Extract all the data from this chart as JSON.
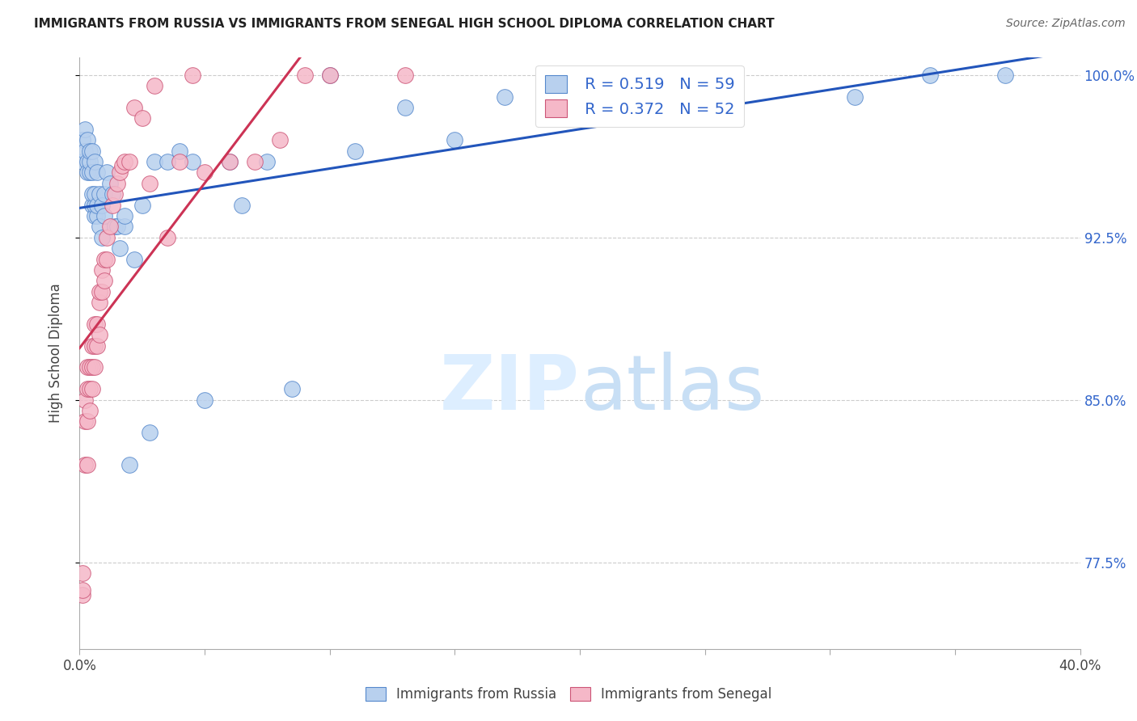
{
  "title": "IMMIGRANTS FROM RUSSIA VS IMMIGRANTS FROM SENEGAL HIGH SCHOOL DIPLOMA CORRELATION CHART",
  "source": "Source: ZipAtlas.com",
  "ylabel": "High School Diploma",
  "xlim": [
    0.0,
    0.4
  ],
  "ylim": [
    0.735,
    1.008
  ],
  "ytick_positions": [
    0.775,
    0.85,
    0.925,
    1.0
  ],
  "ytick_labels": [
    "77.5%",
    "85.0%",
    "92.5%",
    "100.0%"
  ],
  "russia_color": "#b8d0ee",
  "senegal_color": "#f5b8c8",
  "russia_edge_color": "#5588cc",
  "senegal_edge_color": "#cc5577",
  "russia_line_color": "#2255bb",
  "senegal_line_color": "#cc3355",
  "watermark_color": "#ddeeff",
  "legend_russia_R": "R = 0.519",
  "legend_russia_N": "N = 59",
  "legend_senegal_R": "R = 0.372",
  "legend_senegal_N": "N = 52",
  "russia_x": [
    0.001,
    0.001,
    0.002,
    0.002,
    0.003,
    0.003,
    0.003,
    0.004,
    0.004,
    0.004,
    0.005,
    0.005,
    0.005,
    0.005,
    0.006,
    0.006,
    0.006,
    0.006,
    0.007,
    0.007,
    0.007,
    0.008,
    0.008,
    0.009,
    0.009,
    0.01,
    0.01,
    0.011,
    0.012,
    0.013,
    0.014,
    0.015,
    0.016,
    0.018,
    0.018,
    0.02,
    0.022,
    0.025,
    0.028,
    0.03,
    0.035,
    0.04,
    0.045,
    0.05,
    0.06,
    0.065,
    0.075,
    0.085,
    0.1,
    0.11,
    0.13,
    0.15,
    0.17,
    0.2,
    0.22,
    0.26,
    0.31,
    0.34,
    0.37
  ],
  "russia_y": [
    0.96,
    0.97,
    0.965,
    0.975,
    0.96,
    0.955,
    0.97,
    0.955,
    0.96,
    0.965,
    0.94,
    0.945,
    0.955,
    0.965,
    0.935,
    0.94,
    0.945,
    0.96,
    0.935,
    0.94,
    0.955,
    0.93,
    0.945,
    0.925,
    0.94,
    0.935,
    0.945,
    0.955,
    0.95,
    0.945,
    0.93,
    0.93,
    0.92,
    0.93,
    0.935,
    0.82,
    0.915,
    0.94,
    0.835,
    0.96,
    0.96,
    0.965,
    0.96,
    0.85,
    0.96,
    0.94,
    0.96,
    0.855,
    1.0,
    0.965,
    0.985,
    0.97,
    0.99,
    0.98,
    0.995,
    1.0,
    0.99,
    1.0,
    1.0
  ],
  "senegal_x": [
    0.001,
    0.001,
    0.001,
    0.002,
    0.002,
    0.002,
    0.003,
    0.003,
    0.003,
    0.003,
    0.004,
    0.004,
    0.004,
    0.005,
    0.005,
    0.005,
    0.006,
    0.006,
    0.006,
    0.007,
    0.007,
    0.008,
    0.008,
    0.008,
    0.009,
    0.009,
    0.01,
    0.01,
    0.011,
    0.011,
    0.012,
    0.013,
    0.014,
    0.015,
    0.016,
    0.017,
    0.018,
    0.02,
    0.022,
    0.025,
    0.028,
    0.03,
    0.035,
    0.04,
    0.045,
    0.05,
    0.06,
    0.07,
    0.08,
    0.09,
    0.1,
    0.13
  ],
  "senegal_y": [
    0.76,
    0.762,
    0.77,
    0.82,
    0.84,
    0.85,
    0.82,
    0.84,
    0.855,
    0.865,
    0.845,
    0.855,
    0.865,
    0.855,
    0.865,
    0.875,
    0.865,
    0.875,
    0.885,
    0.875,
    0.885,
    0.88,
    0.895,
    0.9,
    0.9,
    0.91,
    0.905,
    0.915,
    0.915,
    0.925,
    0.93,
    0.94,
    0.945,
    0.95,
    0.955,
    0.958,
    0.96,
    0.96,
    0.985,
    0.98,
    0.95,
    0.995,
    0.925,
    0.96,
    1.0,
    0.955,
    0.96,
    0.96,
    0.97,
    1.0,
    1.0,
    1.0
  ]
}
